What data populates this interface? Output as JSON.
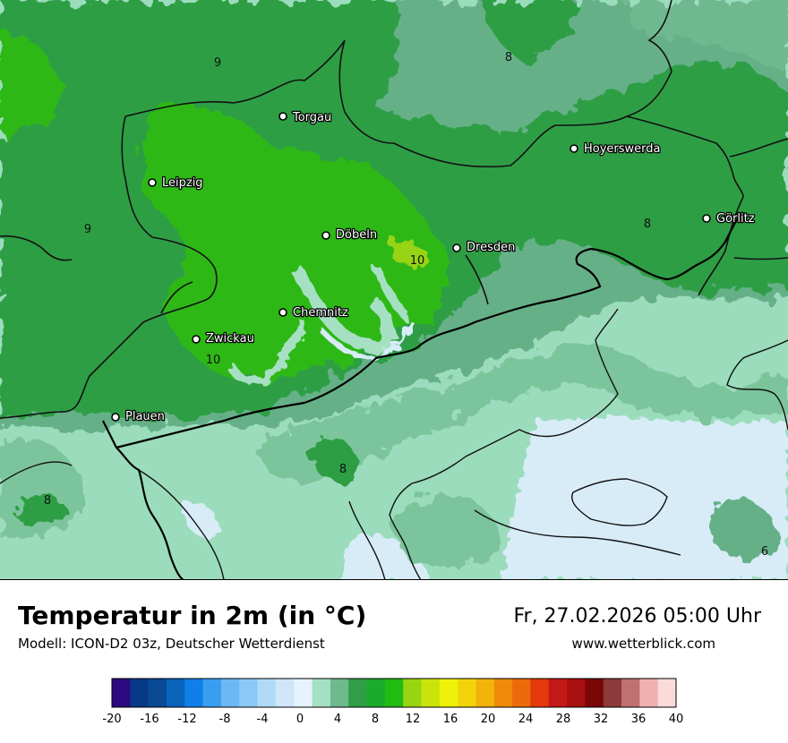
{
  "title": "Temperatur in 2m (in °C)",
  "subtitle": "Modell: ICON-D2 03z, Deutscher Wetterdienst",
  "datetime": "Fr, 27.02.2026 05:00 Uhr",
  "website": "www.wetterblick.com",
  "cities": [
    {
      "name": "Torgau",
      "lon": 13.0,
      "lat": 51.56
    },
    {
      "name": "Leipzig",
      "lon": 12.37,
      "lat": 51.34
    },
    {
      "name": "Hoyerswerda",
      "lon": 14.25,
      "lat": 51.44
    },
    {
      "name": "Görlitz",
      "lon": 14.99,
      "lat": 51.15
    },
    {
      "name": "Döbeln",
      "lon": 13.12,
      "lat": 51.12
    },
    {
      "name": "Dresden",
      "lon": 13.74,
      "lat": 51.05
    },
    {
      "name": "Chemnitz",
      "lon": 12.92,
      "lat": 50.83
    },
    {
      "name": "Zwickau",
      "lon": 12.5,
      "lat": 50.72
    },
    {
      "name": "Plauen",
      "lon": 12.13,
      "lat": 50.5
    }
  ],
  "isotherm_labels": [
    "9",
    "8",
    "9",
    "10",
    "8",
    "10",
    "8",
    "8",
    "6"
  ],
  "legend": {
    "ticks": [
      "-20",
      "-16",
      "-12",
      "-8",
      "-4",
      "0",
      "4",
      "8",
      "12",
      "16",
      "20",
      "24",
      "28",
      "32",
      "36",
      "40"
    ],
    "colors": [
      "#2c0a80",
      "#063a86",
      "#0a4a95",
      "#0a63bb",
      "#1080e8",
      "#3a9ef0",
      "#6cb8f4",
      "#8cc8f6",
      "#b0daf8",
      "#cfe6fb",
      "#e6f2fd",
      "#a6e0c2",
      "#6fb98e",
      "#2f9e45",
      "#1caa2a",
      "#22bb12",
      "#98d412",
      "#c8e40a",
      "#eef20a",
      "#f2d40a",
      "#f2b30a",
      "#f08a0a",
      "#ec6a0a",
      "#e23a0a",
      "#c21818",
      "#a80f0f",
      "#7a0606",
      "#8e3a3a",
      "#c07070",
      "#f0b0b0",
      "#fbdada"
    ]
  }
}
